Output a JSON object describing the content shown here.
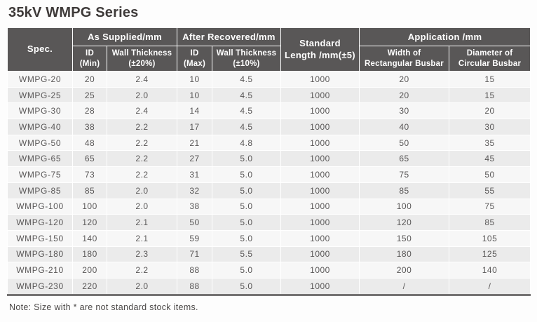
{
  "page": {
    "title": "35kV WMPG Series",
    "note": "Note: Size with * are not standard stock items."
  },
  "colors": {
    "header_bg": "#595757",
    "header_text": "#ffffff",
    "row_odd_bg": "#f7f7f7",
    "row_even_bg": "#ebebeb",
    "body_text": "#595757",
    "title_text": "#3e3a39",
    "bottom_rule": "#757373"
  },
  "table": {
    "header": {
      "spec": "Spec.",
      "as_supplied": "As Supplied/mm",
      "after_recovered": "After Recovered/mm",
      "standard_length": "Standard\nLength /mm(±5)",
      "application": "Application /mm",
      "id_min": "ID\n(Min)",
      "wall_thickness_20": "Wall Thickness\n(±20%)",
      "id_max": "ID\n(Max)",
      "wall_thickness_10": "Wall Thickness\n(±10%)",
      "width_rect_busbar": "Width of\nRectangular Busbar",
      "dia_circ_busbar": "Diameter of\nCircular Busbar"
    },
    "rows": [
      {
        "spec": "WMPG-20",
        "id_min": "20",
        "wall_thickness_supplied": "2.4",
        "id_max": "10",
        "wall_thickness_recovered": "4.5",
        "standard_length": "1000",
        "width_rect": "20",
        "dia_circ": "15"
      },
      {
        "spec": "WMPG-25",
        "id_min": "25",
        "wall_thickness_supplied": "2.0",
        "id_max": "10",
        "wall_thickness_recovered": "4.5",
        "standard_length": "1000",
        "width_rect": "20",
        "dia_circ": "15"
      },
      {
        "spec": "WMPG-30",
        "id_min": "28",
        "wall_thickness_supplied": "2.4",
        "id_max": "14",
        "wall_thickness_recovered": "4.5",
        "standard_length": "1000",
        "width_rect": "30",
        "dia_circ": "20"
      },
      {
        "spec": "WMPG-40",
        "id_min": "38",
        "wall_thickness_supplied": "2.2",
        "id_max": "17",
        "wall_thickness_recovered": "4.5",
        "standard_length": "1000",
        "width_rect": "40",
        "dia_circ": "30"
      },
      {
        "spec": "WMPG-50",
        "id_min": "48",
        "wall_thickness_supplied": "2.2",
        "id_max": "21",
        "wall_thickness_recovered": "4.8",
        "standard_length": "1000",
        "width_rect": "50",
        "dia_circ": "35"
      },
      {
        "spec": "WMPG-65",
        "id_min": "65",
        "wall_thickness_supplied": "2.2",
        "id_max": "27",
        "wall_thickness_recovered": "5.0",
        "standard_length": "1000",
        "width_rect": "65",
        "dia_circ": "45"
      },
      {
        "spec": "WMPG-75",
        "id_min": "73",
        "wall_thickness_supplied": "2.2",
        "id_max": "31",
        "wall_thickness_recovered": "5.0",
        "standard_length": "1000",
        "width_rect": "75",
        "dia_circ": "50"
      },
      {
        "spec": "WMPG-85",
        "id_min": "85",
        "wall_thickness_supplied": "2.0",
        "id_max": "32",
        "wall_thickness_recovered": "5.0",
        "standard_length": "1000",
        "width_rect": "85",
        "dia_circ": "55"
      },
      {
        "spec": "WMPG-100",
        "id_min": "100",
        "wall_thickness_supplied": "2.0",
        "id_max": "38",
        "wall_thickness_recovered": "5.0",
        "standard_length": "1000",
        "width_rect": "100",
        "dia_circ": "75"
      },
      {
        "spec": "WMPG-120",
        "id_min": "120",
        "wall_thickness_supplied": "2.1",
        "id_max": "50",
        "wall_thickness_recovered": "5.0",
        "standard_length": "1000",
        "width_rect": "120",
        "dia_circ": "85"
      },
      {
        "spec": "WMPG-150",
        "id_min": "140",
        "wall_thickness_supplied": "2.1",
        "id_max": "59",
        "wall_thickness_recovered": "5.0",
        "standard_length": "1000",
        "width_rect": "150",
        "dia_circ": "105"
      },
      {
        "spec": "WMPG-180",
        "id_min": "180",
        "wall_thickness_supplied": "2.3",
        "id_max": "71",
        "wall_thickness_recovered": "5.5",
        "standard_length": "1000",
        "width_rect": "180",
        "dia_circ": "125"
      },
      {
        "spec": "WMPG-210",
        "id_min": "200",
        "wall_thickness_supplied": "2.2",
        "id_max": "88",
        "wall_thickness_recovered": "5.0",
        "standard_length": "1000",
        "width_rect": "200",
        "dia_circ": "140"
      },
      {
        "spec": "WMPG-230",
        "id_min": "220",
        "wall_thickness_supplied": "2.0",
        "id_max": "88",
        "wall_thickness_recovered": "5.0",
        "standard_length": "1000",
        "width_rect": "/",
        "dia_circ": "/"
      }
    ]
  }
}
